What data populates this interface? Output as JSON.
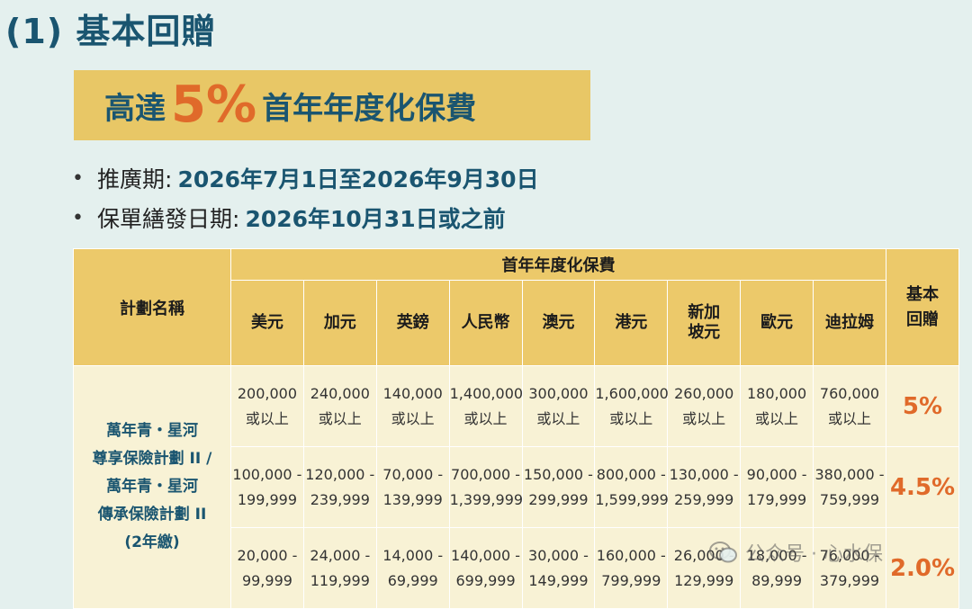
{
  "section_title": "(1) 基本回贈",
  "promo": {
    "pre": "高達",
    "pct": "5%",
    "post": "首年年度化保費"
  },
  "bullets": [
    {
      "label": "推廣期:",
      "value": "2026年7月1日至2026年9月30日"
    },
    {
      "label": "保單繕發日期:",
      "value": "2026年10月31日或之前"
    }
  ],
  "table": {
    "plan_header": "計劃名稱",
    "premium_header": "首年年度化保費",
    "bonus_header": "基本回贈",
    "currencies": [
      "美元",
      "加元",
      "英鎊",
      "人民幣",
      "澳元",
      "港元",
      "新加坡元",
      "歐元",
      "迪拉姆"
    ],
    "plan_lines": [
      "萬年青・星河",
      "尊享保險計劃 II /",
      "萬年青・星河",
      "傳承保險計劃 II",
      "(2年繳)"
    ],
    "rows": [
      {
        "bonus": "5%",
        "cells": [
          [
            "200,000",
            "或以上"
          ],
          [
            "240,000",
            "或以上"
          ],
          [
            "140,000",
            "或以上"
          ],
          [
            "1,400,000",
            "或以上"
          ],
          [
            "300,000",
            "或以上"
          ],
          [
            "1,600,000",
            "或以上"
          ],
          [
            "260,000",
            "或以上"
          ],
          [
            "180,000",
            "或以上"
          ],
          [
            "760,000",
            "或以上"
          ]
        ]
      },
      {
        "bonus": "4.5%",
        "cells": [
          [
            "100,000 -",
            "199,999"
          ],
          [
            "120,000 -",
            "239,999"
          ],
          [
            "70,000 -",
            "139,999"
          ],
          [
            "700,000 -",
            "1,399,999"
          ],
          [
            "150,000 -",
            "299,999"
          ],
          [
            "800,000 -",
            "1,599,999"
          ],
          [
            "130,000 -",
            "259,999"
          ],
          [
            "90,000 -",
            "179,999"
          ],
          [
            "380,000 -",
            "759,999"
          ]
        ]
      },
      {
        "bonus": "2.0%",
        "cells": [
          [
            "20,000 -",
            "99,999"
          ],
          [
            "24,000 -",
            "119,999"
          ],
          [
            "14,000 -",
            "69,999"
          ],
          [
            "140,000 -",
            "699,999"
          ],
          [
            "30,000 -",
            "149,999"
          ],
          [
            "160,000 -",
            "799,999"
          ],
          [
            "26,000 -",
            "129,999"
          ],
          [
            "18,000 -",
            "89,999"
          ],
          [
            "76,000 -",
            "379,999"
          ]
        ]
      }
    ]
  },
  "watermark": {
    "text": "公众号 · 心水保",
    "icon": "wechat-icon"
  },
  "colors": {
    "background": "#e4f0ee",
    "title": "#1a5570",
    "banner": "#e8c766",
    "accent": "#e06a2a",
    "header_cell": "#ecc96a",
    "body_cell": "#f8f2d5"
  }
}
